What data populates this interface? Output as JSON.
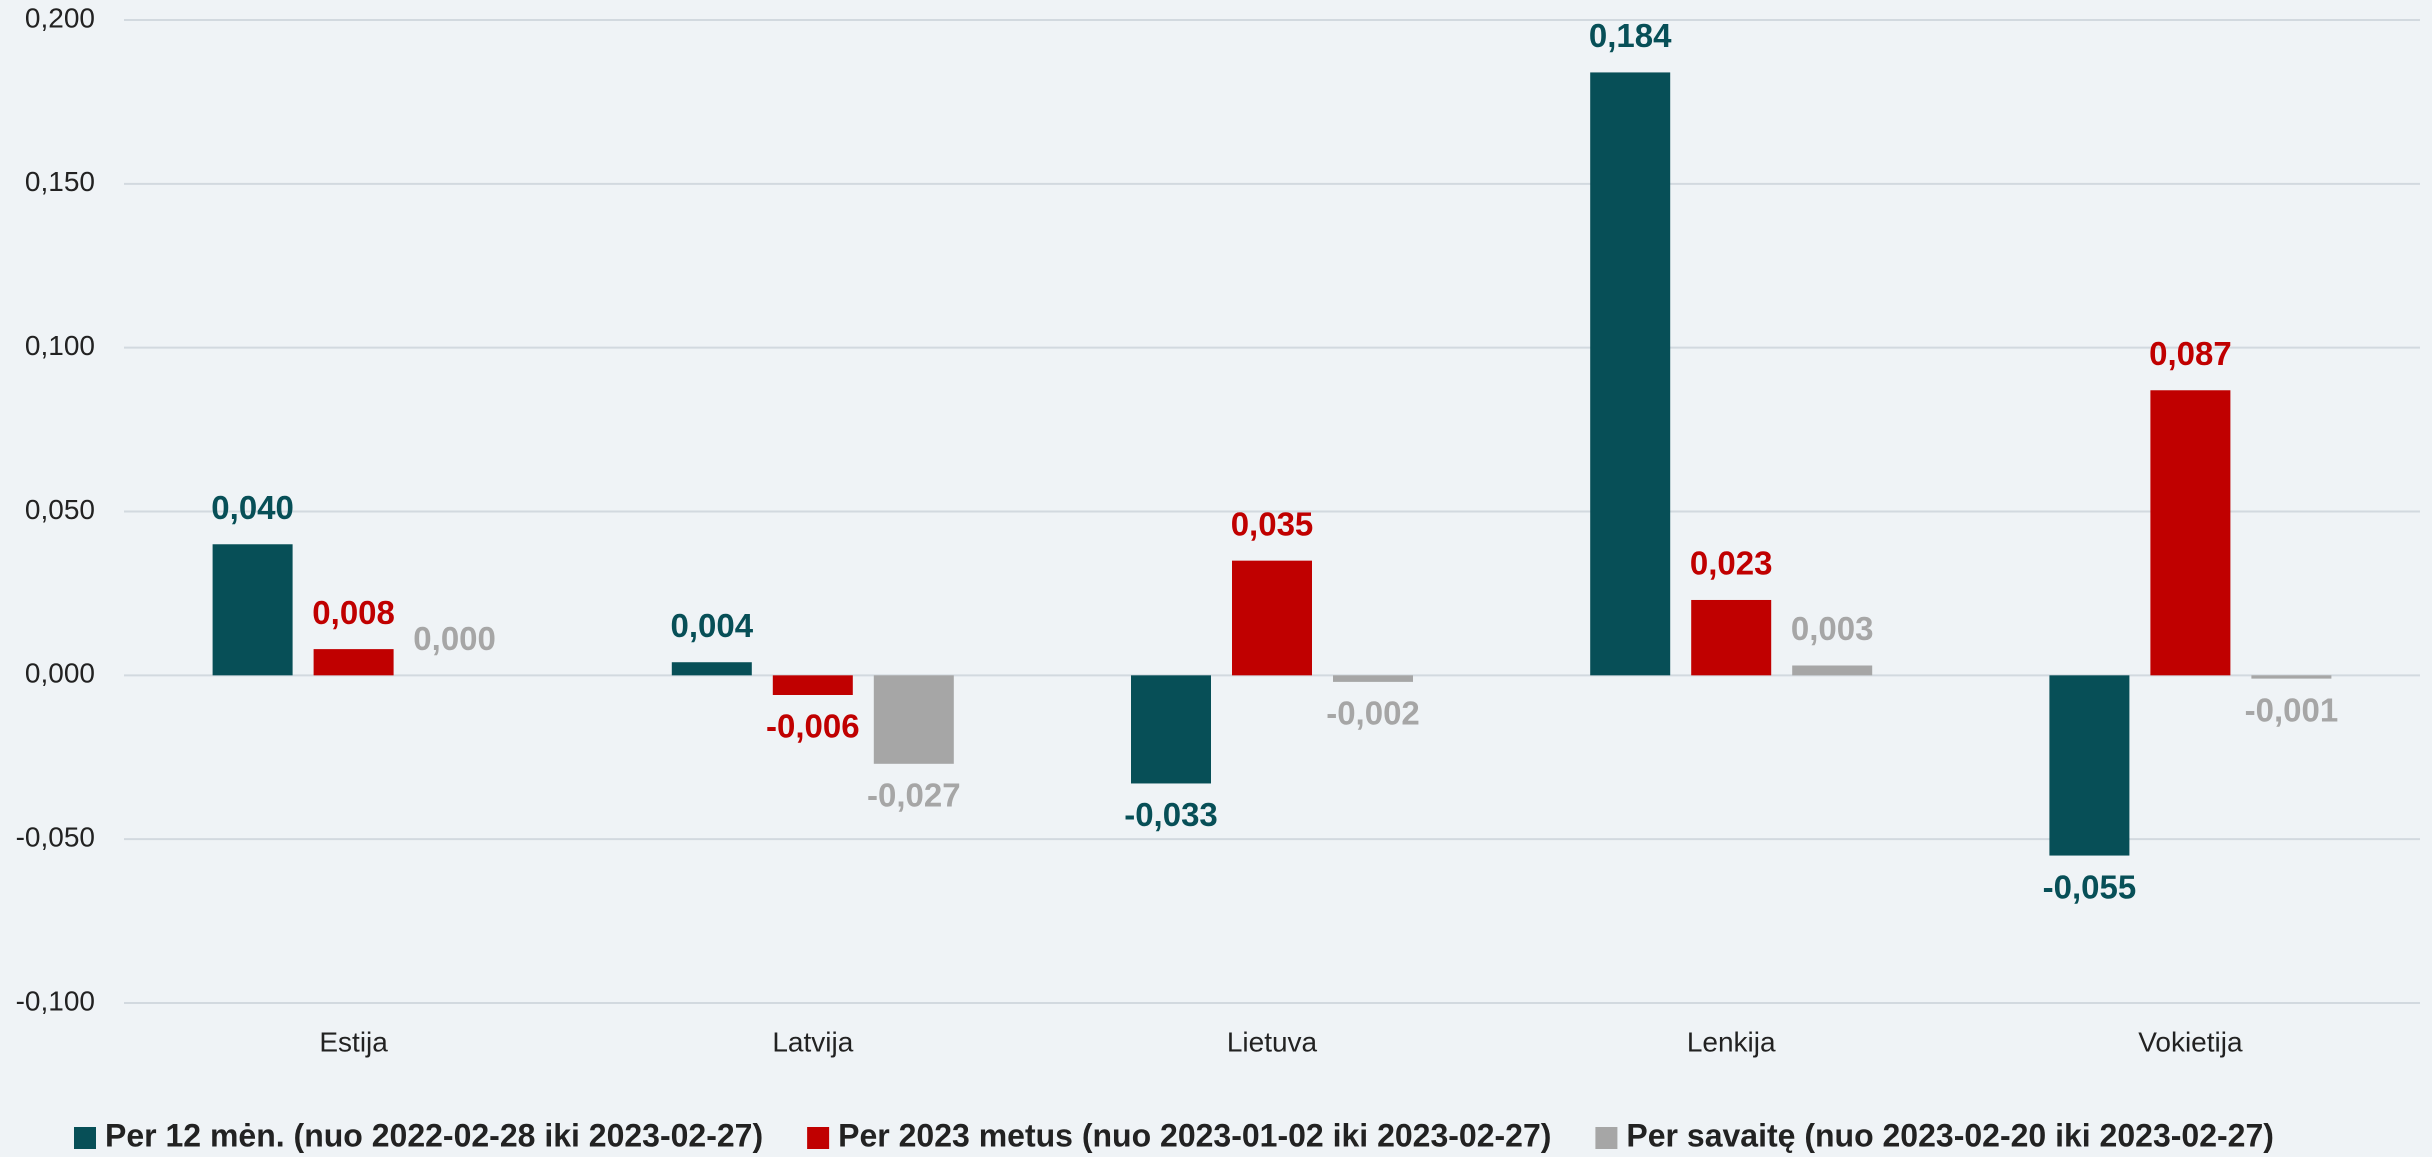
{
  "chart_data": {
    "type": "bar",
    "categories": [
      "Estija",
      "Latvija",
      "Lietuva",
      "Lenkija",
      "Vokietija"
    ],
    "series": [
      {
        "name": "Per 12 mėn. (nuo 2022-02-28 iki 2023-02-27)",
        "color": "#074f57",
        "values": [
          0.04,
          0.004,
          -0.033,
          0.184,
          -0.055
        ],
        "value_labels": [
          "0,040",
          "0,004",
          "-0,033",
          "0,184",
          "-0,055"
        ]
      },
      {
        "name": "Per 2023 metus (nuo 2023-01-02 iki 2023-02-27)",
        "color": "#c00000",
        "values": [
          0.008,
          -0.006,
          0.035,
          0.023,
          0.087
        ],
        "value_labels": [
          "0,008",
          "-0,006",
          "0,035",
          "0,023",
          "0,087"
        ]
      },
      {
        "name": "Per savaitę (nuo 2023-02-20 iki 2023-02-27)",
        "color": "#a6a6a6",
        "values": [
          0.0,
          -0.027,
          -0.002,
          0.003,
          -0.001
        ],
        "value_labels": [
          "0,000",
          "-0,027",
          "-0,002",
          "0,003",
          "-0,001"
        ]
      }
    ],
    "ylim": [
      -0.1,
      0.2
    ],
    "yticks": [
      {
        "value": -0.1,
        "label": "-0,100"
      },
      {
        "value": -0.05,
        "label": "-0,050"
      },
      {
        "value": 0,
        "label": "0,000"
      },
      {
        "value": 0.05,
        "label": "0,050"
      },
      {
        "value": 0.1,
        "label": "0,100"
      },
      {
        "value": 0.15,
        "label": "0,150"
      },
      {
        "value": 0.2,
        "label": "0,200"
      }
    ],
    "grid": true,
    "legend": "bottom"
  }
}
